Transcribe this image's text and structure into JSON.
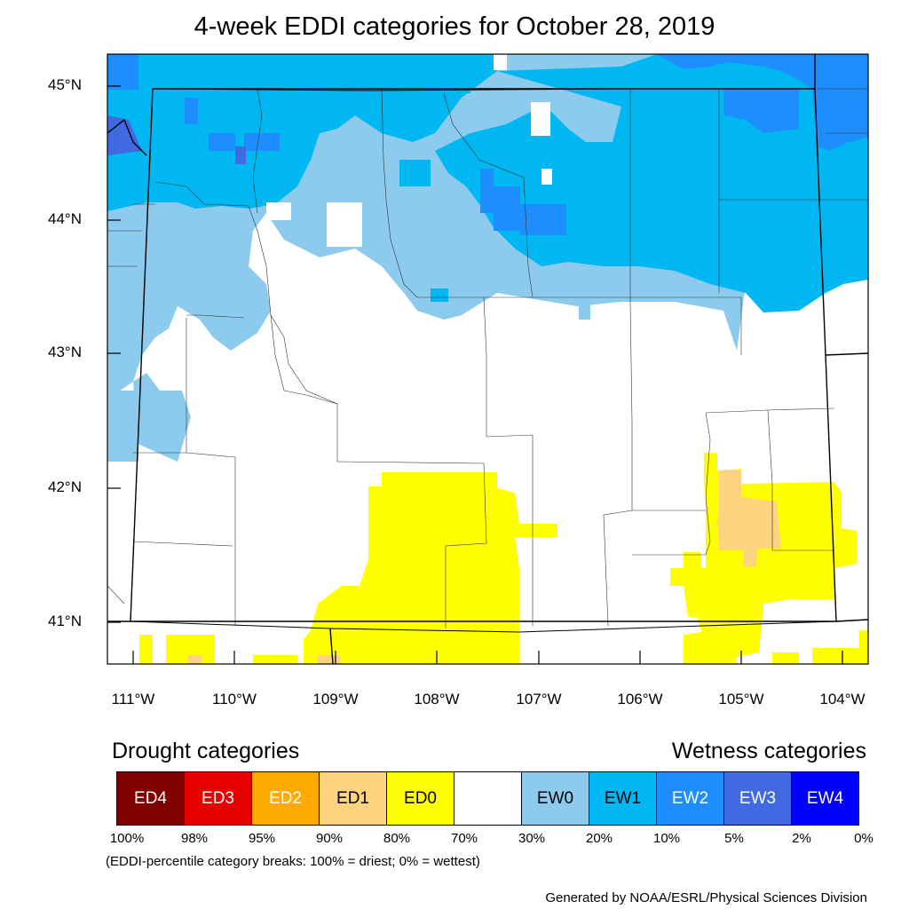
{
  "title": "4-week EDDI categories for October 28, 2019",
  "map": {
    "region": "Wyoming",
    "lat_labels": [
      "45°N",
      "44°N",
      "43°N",
      "42°N",
      "41°N"
    ],
    "lon_labels": [
      "111°W",
      "110°W",
      "109°W",
      "108°W",
      "107°W",
      "106°W",
      "105°W",
      "104°W"
    ]
  },
  "legend": {
    "drought_heading": "Drought categories",
    "wetness_heading": "Wetness categories",
    "categories": [
      {
        "label": "ED4",
        "color": "#800000",
        "text_color": "#ffffff"
      },
      {
        "label": "ED3",
        "color": "#e60000",
        "text_color": "#ffffff"
      },
      {
        "label": "ED2",
        "color": "#ffaa00",
        "text_color": "#ffffff"
      },
      {
        "label": "ED1",
        "color": "#fcd37f",
        "text_color": "#000000"
      },
      {
        "label": "ED0",
        "color": "#ffff00",
        "text_color": "#000000"
      },
      {
        "label": "",
        "color": "#ffffff",
        "text_color": "#000000"
      },
      {
        "label": "EW0",
        "color": "#8ccbee",
        "text_color": "#000000"
      },
      {
        "label": "EW1",
        "color": "#00b7f1",
        "text_color": "#000000"
      },
      {
        "label": "EW2",
        "color": "#1e8eff",
        "text_color": "#ffffff"
      },
      {
        "label": "EW3",
        "color": "#4169e1",
        "text_color": "#ffffff"
      },
      {
        "label": "EW4",
        "color": "#0000ff",
        "text_color": "#ffffff"
      }
    ],
    "breaks": [
      "100%",
      "98%",
      "95%",
      "90%",
      "80%",
      "70%",
      "30%",
      "20%",
      "10%",
      "5%",
      "2%",
      "0%"
    ],
    "note": "(EDDI-percentile category breaks: 100% = driest; 0% = wettest)"
  },
  "credit": "Generated by NOAA/ESRL/Physical Sciences Division"
}
